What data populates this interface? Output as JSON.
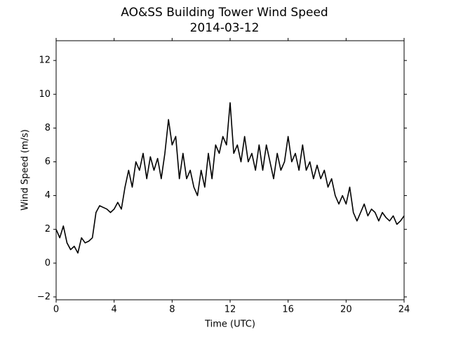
{
  "chart_data": {
    "type": "line",
    "title": "AO&SS Building Tower Wind Speed",
    "subtitle": "2014-03-12",
    "xlabel": "Time (UTC)",
    "ylabel": "Wind Speed (m/s)",
    "x": [
      0,
      0.25,
      0.5,
      0.75,
      1,
      1.25,
      1.5,
      1.75,
      2,
      2.25,
      2.5,
      2.75,
      3,
      3.25,
      3.5,
      3.75,
      4,
      4.25,
      4.5,
      4.75,
      5,
      5.25,
      5.5,
      5.75,
      6,
      6.25,
      6.5,
      6.75,
      7,
      7.25,
      7.5,
      7.75,
      8,
      8.25,
      8.5,
      8.75,
      9,
      9.25,
      9.5,
      9.75,
      10,
      10.25,
      10.5,
      10.75,
      11,
      11.25,
      11.5,
      11.75,
      12,
      12.25,
      12.5,
      12.75,
      13,
      13.25,
      13.5,
      13.75,
      14,
      14.25,
      14.5,
      14.75,
      15,
      15.25,
      15.5,
      15.75,
      16,
      16.25,
      16.5,
      16.75,
      17,
      17.25,
      17.5,
      17.75,
      18,
      18.25,
      18.5,
      18.75,
      19,
      19.25,
      19.5,
      19.75,
      20,
      20.25,
      20.5,
      20.75,
      21,
      21.25,
      21.5,
      21.75,
      22,
      22.25,
      22.5,
      22.75,
      23,
      23.25,
      23.5,
      23.75,
      24
    ],
    "series": [
      {
        "name": "Wind Speed",
        "color": "#000000",
        "values": [
          2.0,
          1.5,
          2.2,
          1.2,
          0.8,
          1.0,
          0.6,
          1.5,
          1.2,
          1.3,
          1.5,
          3.0,
          3.4,
          3.3,
          3.2,
          3.0,
          3.2,
          3.6,
          3.2,
          4.5,
          5.5,
          4.5,
          6.0,
          5.5,
          6.5,
          5.0,
          6.3,
          5.5,
          6.2,
          5.0,
          6.5,
          8.5,
          7.0,
          7.5,
          5.0,
          6.5,
          5.0,
          5.5,
          4.5,
          4.0,
          5.5,
          4.5,
          6.5,
          5.0,
          7.0,
          6.5,
          7.5,
          7.0,
          9.5,
          6.5,
          7.0,
          6.0,
          7.5,
          6.0,
          6.5,
          5.5,
          7.0,
          5.5,
          7.0,
          6.0,
          5.0,
          6.5,
          5.5,
          6.0,
          7.5,
          6.0,
          6.5,
          5.5,
          7.0,
          5.5,
          6.0,
          5.0,
          5.8,
          5.0,
          5.5,
          4.5,
          5.0,
          4.0,
          3.5,
          4.0,
          3.5,
          4.5,
          3.0,
          2.5,
          3.0,
          3.5,
          2.8,
          3.2,
          3.0,
          2.5,
          3.0,
          2.7,
          2.5,
          2.8,
          2.3,
          2.5,
          2.8
        ]
      }
    ],
    "xlim": [
      0,
      24
    ],
    "xticks": [
      0,
      4,
      8,
      12,
      16,
      20,
      24
    ],
    "ylim": [
      -2.17,
      13.17
    ],
    "yticks": [
      {
        "value": -2,
        "label": "−2"
      },
      0,
      2,
      4,
      6,
      8,
      10,
      12
    ]
  }
}
